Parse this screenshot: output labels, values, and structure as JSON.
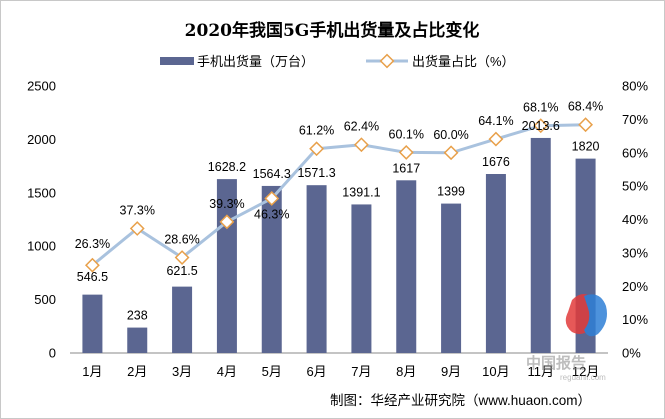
{
  "chart_data": {
    "type": "bar",
    "title": "2020年我国5G手机出货量及占比变化",
    "categories": [
      "1月",
      "2月",
      "3月",
      "4月",
      "5月",
      "6月",
      "7月",
      "8月",
      "9月",
      "10月",
      "11月",
      "12月"
    ],
    "series": [
      {
        "name": "手机出货量（万台）",
        "type": "bar",
        "axis": "left",
        "values": [
          546.5,
          238,
          621.5,
          1628.2,
          1564.3,
          1571.3,
          1391.1,
          1617,
          1399,
          1676,
          2013.6,
          1820
        ],
        "labels": [
          "546.5",
          "238",
          "621.5",
          "1628.2",
          "1564.3",
          "1571.3",
          "1391.1",
          "1617",
          "1399",
          "1676",
          "2013.6",
          "1820"
        ]
      },
      {
        "name": "出货量占比（%）",
        "type": "line",
        "axis": "right",
        "values": [
          26.3,
          37.3,
          28.6,
          39.3,
          46.3,
          61.2,
          62.4,
          60.1,
          60.0,
          64.1,
          68.1,
          68.4
        ],
        "labels": [
          "26.3%",
          "37.3%",
          "28.6%",
          "39.3%",
          "46.3%",
          "61.2%",
          "62.4%",
          "60.1%",
          "60.0%",
          "64.1%",
          "68.1%",
          "68.4%"
        ]
      }
    ],
    "yleft": {
      "ylim": [
        0,
        2500
      ],
      "ticks": [
        "0",
        "500",
        "1000",
        "1500",
        "2000",
        "2500"
      ]
    },
    "yright": {
      "ylim": [
        0,
        80
      ],
      "ticks": [
        "0%",
        "10%",
        "20%",
        "30%",
        "40%",
        "50%",
        "60%",
        "70%",
        "80%"
      ]
    },
    "legend_position": "top-center",
    "grid": false,
    "colors": {
      "bar": "#5b6691",
      "line": "#a9c2de",
      "marker_edge": "#e8a04a",
      "marker_fill": "#ffffff"
    }
  },
  "source_text": "制图：华经产业研究院（www.huaon.com）",
  "watermark": {
    "cn": "中国报告",
    "url": "reguanli.com"
  }
}
